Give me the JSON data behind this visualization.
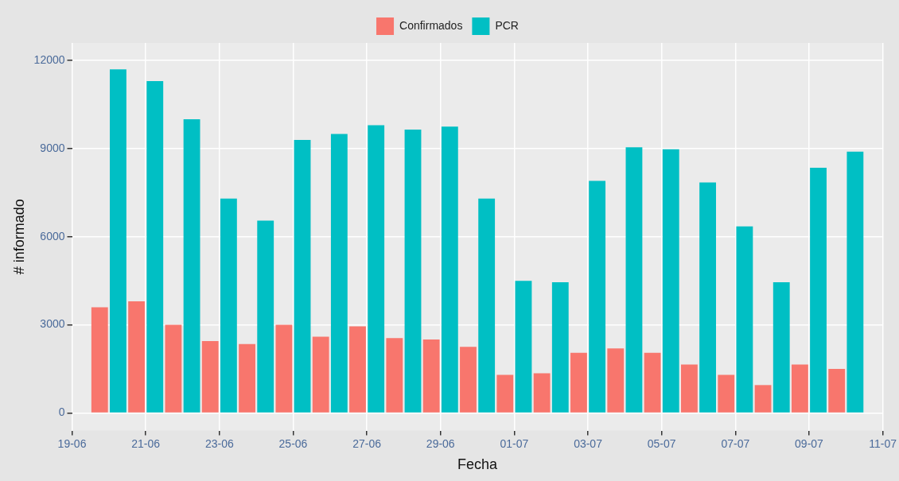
{
  "chart_data": {
    "type": "bar",
    "xlabel": "Fecha",
    "ylabel": "# informado",
    "x": [
      "--06-20",
      "--06-21",
      "--06-22",
      "--06-23",
      "--06-24",
      "--06-25",
      "--06-26",
      "--06-27",
      "--06-28",
      "--06-29",
      "--06-30",
      "--07-01",
      "--07-02",
      "--07-03",
      "--07-04",
      "--07-05",
      "--07-06",
      "--07-07",
      "--07-08",
      "--07-09",
      "--07-10"
    ],
    "series": [
      {
        "name": "Confirmados",
        "color": "#f8766d",
        "values": [
          3600,
          3800,
          3000,
          2450,
          2350,
          3000,
          2600,
          2950,
          2550,
          2500,
          2250,
          1300,
          1350,
          2050,
          2200,
          2050,
          1650,
          1300,
          950,
          1650,
          1500
        ]
      },
      {
        "name": "PCR",
        "color": "#00bfc4",
        "values": [
          11700,
          11300,
          10000,
          7300,
          6550,
          9300,
          9500,
          9800,
          9650,
          9750,
          7300,
          4500,
          4450,
          7900,
          9050,
          8980,
          7850,
          6350,
          4450,
          8350,
          8900
        ]
      }
    ],
    "xlim": [
      "--06-19",
      "--07-11"
    ],
    "xticks": [
      {
        "value": "--06-19",
        "label": "19-06"
      },
      {
        "value": "--06-21",
        "label": "21-06"
      },
      {
        "value": "--06-23",
        "label": "23-06"
      },
      {
        "value": "--06-25",
        "label": "25-06"
      },
      {
        "value": "--06-27",
        "label": "27-06"
      },
      {
        "value": "--06-29",
        "label": "29-06"
      },
      {
        "value": "--07-01",
        "label": "01-07"
      },
      {
        "value": "--07-03",
        "label": "03-07"
      },
      {
        "value": "--07-05",
        "label": "05-07"
      },
      {
        "value": "--07-07",
        "label": "07-07"
      },
      {
        "value": "--07-09",
        "label": "09-07"
      },
      {
        "value": "--07-11",
        "label": "11-07"
      }
    ],
    "ylim": [
      -600,
      12600
    ],
    "yticks": [
      0,
      3000,
      6000,
      9000,
      12000
    ],
    "grid": true,
    "legend": "top"
  }
}
